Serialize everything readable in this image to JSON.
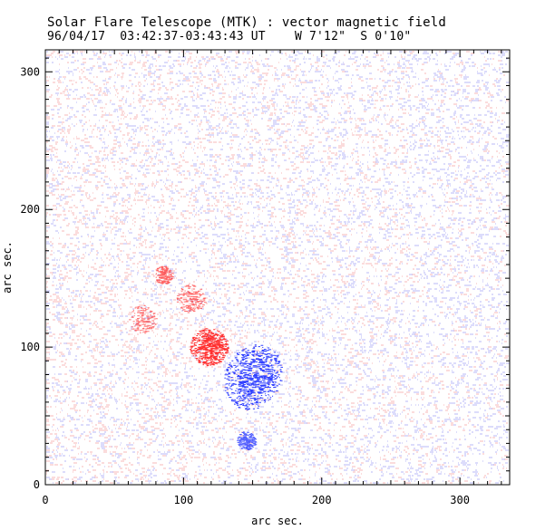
{
  "title": "Solar Flare Telescope (MTK) : vector magnetic field",
  "subtitle": {
    "date": "96/04/17",
    "time_range": "03:42:37-03:43:43 UT",
    "position_w": "W 7'12\"",
    "position_s": "S 0'10\""
  },
  "colors": {
    "positive_polarity": "#ff3030",
    "negative_polarity": "#3040ff",
    "noise_red": "#f08080",
    "noise_blue": "#8080f0",
    "axis": "#000000"
  },
  "chart_data": {
    "type": "vector_magnetogram",
    "xlabel": "arc sec.",
    "ylabel": "arc sec.",
    "xlim": [
      0,
      336
    ],
    "ylim": [
      0,
      316
    ],
    "x_ticks": [
      0,
      100,
      200,
      300
    ],
    "y_ticks": [
      0,
      100,
      200,
      300
    ],
    "x_tick_labels": [
      "0",
      "100",
      "200",
      "300"
    ],
    "y_tick_labels": [
      "0",
      "100",
      "200",
      "300"
    ],
    "features": [
      {
        "polarity": "positive",
        "x": 118,
        "y": 100,
        "radius": 8,
        "strength": 1.0
      },
      {
        "polarity": "negative",
        "x": 150,
        "y": 78,
        "radius": 11,
        "strength": 1.0
      },
      {
        "polarity": "negative",
        "x": 145,
        "y": 32,
        "radius": 4,
        "strength": 0.6
      },
      {
        "polarity": "positive",
        "x": 85,
        "y": 152,
        "radius": 4,
        "strength": 0.45
      },
      {
        "polarity": "positive",
        "x": 105,
        "y": 135,
        "radius": 6,
        "strength": 0.35
      },
      {
        "polarity": "positive",
        "x": 70,
        "y": 120,
        "radius": 6,
        "strength": 0.25
      }
    ]
  }
}
